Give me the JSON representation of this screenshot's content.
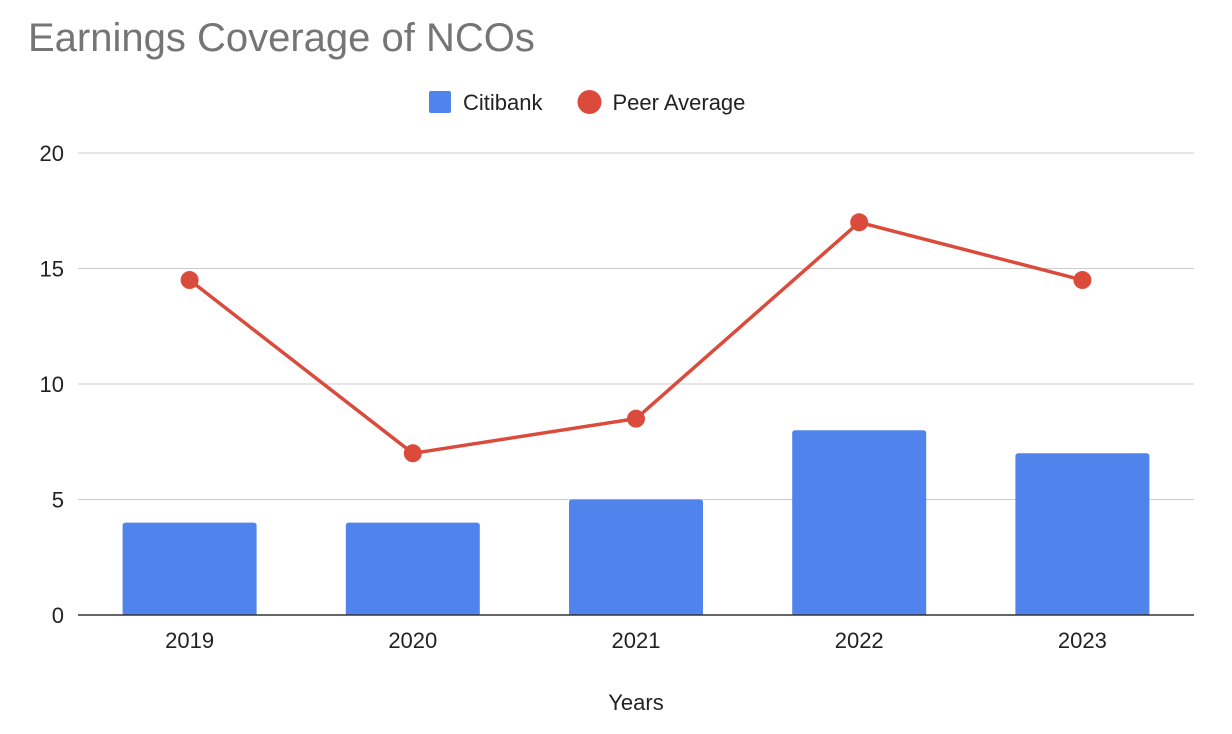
{
  "chart_data": {
    "type": "bar",
    "title": "Earnings Coverage of NCOs",
    "xlabel": "Years",
    "ylabel": "",
    "categories": [
      "2019",
      "2020",
      "2021",
      "2022",
      "2023"
    ],
    "series": [
      {
        "name": "Citibank",
        "type": "bar",
        "color": "#5083EC",
        "values": [
          4,
          4,
          5,
          8,
          7
        ]
      },
      {
        "name": "Peer Average",
        "type": "line",
        "color": "#DB4B3C",
        "values": [
          14.5,
          7,
          8.5,
          17,
          14.5
        ]
      }
    ],
    "ylim": [
      0,
      20
    ],
    "yticks": [
      0,
      5,
      10,
      15,
      20
    ],
    "grid": true,
    "legend_position": "top-center"
  }
}
